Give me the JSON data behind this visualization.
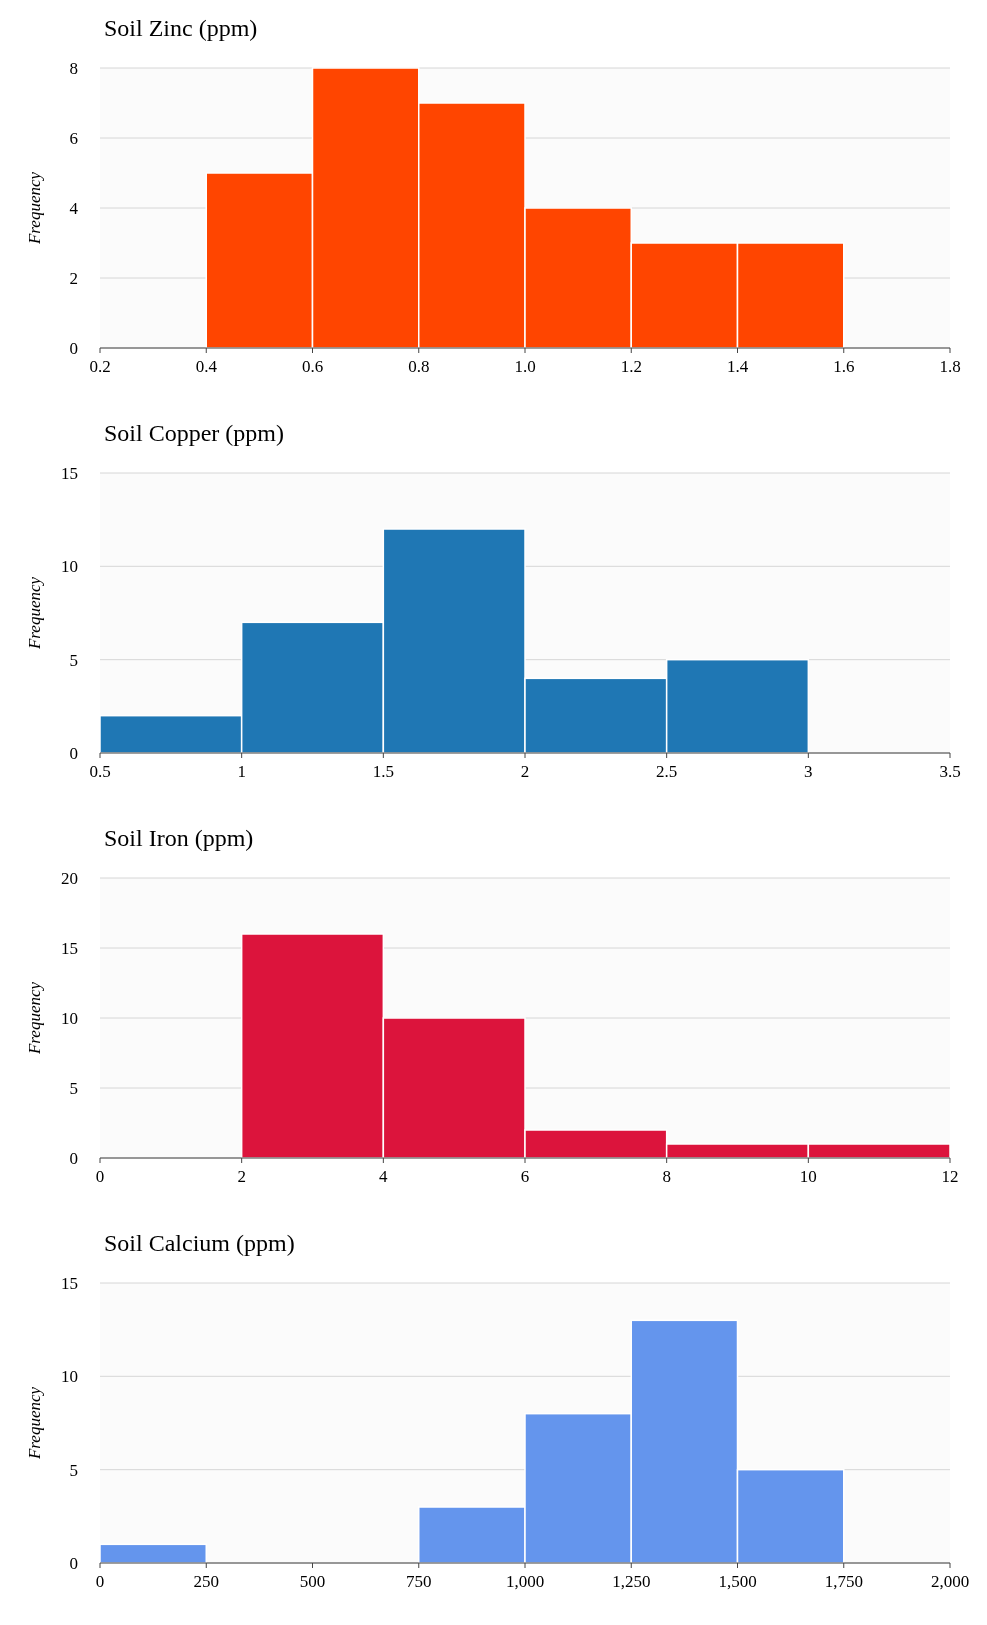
{
  "chart_data": [
    {
      "type": "histogram",
      "title": "Soil Zinc (ppm)",
      "ylabel": "Frequency",
      "bins": [
        0.4,
        0.6,
        0.8,
        1.0,
        1.2,
        1.4,
        1.6
      ],
      "values": [
        5,
        8,
        7,
        4,
        3,
        3
      ],
      "color": "#ff4500",
      "xlim": [
        0.2,
        1.8
      ],
      "xticks": [
        0.2,
        {
          "value": 0.4,
          "label": "0.4"
        },
        0.6,
        0.8,
        {
          "value": 1,
          "label": "1.0"
        },
        1.2,
        1.4,
        1.6,
        1.8
      ],
      "ylim": [
        0,
        8
      ],
      "yticks": [
        0,
        2,
        4,
        6,
        8
      ],
      "grid": "y"
    },
    {
      "type": "histogram",
      "title": "Soil Copper (ppm)",
      "ylabel": "Frequency",
      "bins": [
        0.5,
        1,
        1.5,
        2,
        2.5,
        3
      ],
      "values": [
        2,
        7,
        12,
        4,
        5
      ],
      "color": "#1f77b4",
      "xlim": [
        0.5,
        3.5
      ],
      "xticks": [
        0.5,
        1,
        1.5,
        2,
        2.5,
        3,
        3.5
      ],
      "ylim": [
        0,
        15
      ],
      "yticks": [
        0,
        5,
        10,
        15
      ],
      "grid": "y"
    },
    {
      "type": "histogram",
      "title": "Soil Iron (ppm)",
      "ylabel": "Frequency",
      "bins": [
        2,
        4,
        6,
        8,
        10,
        12
      ],
      "values": [
        16,
        10,
        2,
        1,
        1
      ],
      "color": "#dc143c",
      "xlim": [
        0,
        12
      ],
      "xticks": [
        0,
        2,
        4,
        6,
        8,
        10,
        12
      ],
      "ylim": [
        0,
        20
      ],
      "yticks": [
        0,
        5,
        10,
        15,
        20
      ],
      "grid": "y"
    },
    {
      "type": "histogram",
      "title": "Soil Calcium (ppm)",
      "ylabel": "Frequency",
      "bins": [
        0,
        250,
        500,
        750,
        1000,
        1250,
        1500,
        1750
      ],
      "values": [
        1,
        0,
        0,
        3,
        8,
        13,
        5
      ],
      "color": "#6495ed",
      "xlim": [
        0,
        2000
      ],
      "xticks": [
        0,
        250,
        500,
        750,
        {
          "value": 1000,
          "label": "1,000"
        },
        {
          "value": 1250,
          "label": "1,250"
        },
        {
          "value": 1500,
          "label": "1,500"
        },
        {
          "value": 1750,
          "label": "1,750"
        },
        {
          "value": 2000,
          "label": "2,000"
        }
      ],
      "ylim": [
        0,
        15
      ],
      "yticks": [
        0,
        5,
        10,
        15
      ],
      "grid": "y"
    }
  ]
}
